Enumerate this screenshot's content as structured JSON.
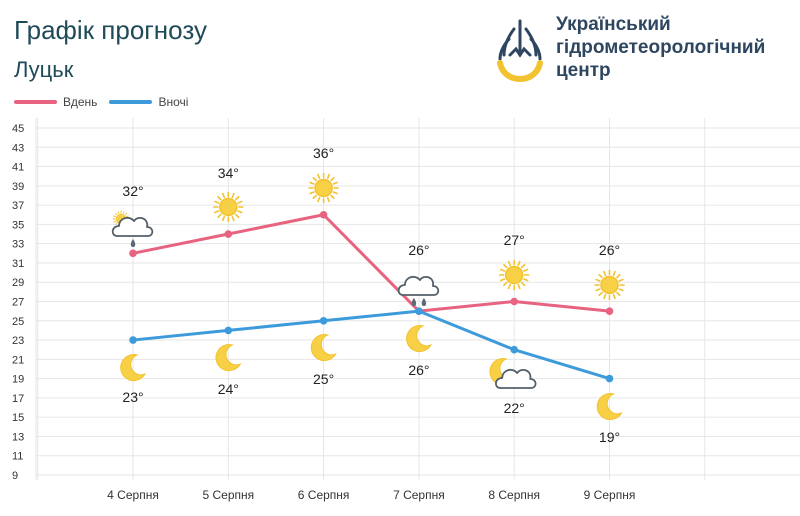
{
  "header": {
    "title": "Графік прогнозу",
    "city": "Луцьк"
  },
  "logo": {
    "lines": [
      "Український",
      "гідрометеорологічний",
      "центр"
    ],
    "colors": {
      "blue": "#2e4660",
      "yellow": "#f2c230"
    }
  },
  "legend": [
    {
      "label": "Вдень",
      "color": "#e8637f"
    },
    {
      "label": "Вночі",
      "color": "#3d9bdc"
    }
  ],
  "chart_data": {
    "type": "line",
    "categories": [
      "4 Серпня",
      "5 Серпня",
      "6 Серпня",
      "7 Серпня",
      "8 Серпня",
      "9 Серпня"
    ],
    "ylim": [
      9,
      45
    ],
    "yticks": [
      9,
      11,
      13,
      15,
      17,
      19,
      21,
      23,
      25,
      27,
      29,
      31,
      33,
      35,
      37,
      39,
      41,
      43,
      45
    ],
    "grid": true,
    "legend_position": "top-left",
    "series": [
      {
        "name": "Вдень",
        "color": "#e8637f",
        "values": [
          32,
          34,
          36,
          26,
          27,
          26
        ],
        "labels": [
          "32°",
          "34°",
          "36°",
          "26°",
          "27°",
          "26°"
        ],
        "icons": [
          "sun-cloud-rain-icon",
          "sun-icon",
          "sun-icon",
          "cloud-rain-icon",
          "sun-icon",
          "sun-icon"
        ]
      },
      {
        "name": "Вночі",
        "color": "#3d9bdc",
        "values": [
          23,
          24,
          25,
          26,
          22,
          19
        ],
        "labels": [
          "23°",
          "24°",
          "25°",
          "26°",
          "22°",
          "19°"
        ],
        "icons": [
          "moon-icon",
          "moon-icon",
          "moon-icon",
          "moon-icon",
          "moon-cloud-icon",
          "moon-icon"
        ]
      }
    ]
  }
}
